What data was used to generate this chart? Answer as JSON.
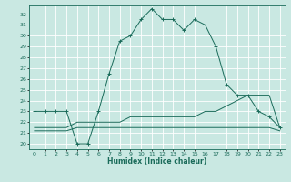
{
  "xlabel": "Humidex (Indice chaleur)",
  "ylabel": "",
  "bg_color": "#c9e8e2",
  "grid_color": "#b0d8d0",
  "line_color": "#1a6b5a",
  "xlim": [
    -0.5,
    23.5
  ],
  "ylim": [
    19.5,
    32.8
  ],
  "xticks": [
    0,
    1,
    2,
    3,
    4,
    5,
    6,
    7,
    8,
    9,
    10,
    11,
    12,
    13,
    14,
    15,
    16,
    17,
    18,
    19,
    20,
    21,
    22,
    23
  ],
  "yticks": [
    20,
    21,
    22,
    23,
    24,
    25,
    26,
    27,
    28,
    29,
    30,
    31,
    32
  ],
  "main_line": {
    "x": [
      0,
      1,
      2,
      3,
      4,
      5,
      6,
      7,
      8,
      9,
      10,
      11,
      12,
      13,
      14,
      15,
      16,
      17,
      18,
      19,
      20,
      21,
      22,
      23
    ],
    "y": [
      23,
      23,
      23,
      23,
      20,
      20,
      23,
      26.5,
      29.5,
      30,
      31.5,
      32.5,
      31.5,
      31.5,
      30.5,
      31.5,
      31,
      29,
      25.5,
      24.5,
      24.5,
      23,
      22.5,
      21.5
    ]
  },
  "line2": {
    "x": [
      0,
      1,
      2,
      3,
      4,
      5,
      6,
      7,
      8,
      9,
      10,
      11,
      12,
      13,
      14,
      15,
      16,
      17,
      18,
      19,
      20,
      21,
      22,
      23
    ],
    "y": [
      21.5,
      21.5,
      21.5,
      21.5,
      22,
      22,
      22,
      22,
      22,
      22.5,
      22.5,
      22.5,
      22.5,
      22.5,
      22.5,
      22.5,
      23,
      23,
      23.5,
      24,
      24.5,
      24.5,
      24.5,
      21.5
    ]
  },
  "line3": {
    "x": [
      0,
      1,
      2,
      3,
      4,
      5,
      6,
      7,
      8,
      9,
      10,
      11,
      12,
      13,
      14,
      15,
      16,
      17,
      18,
      19,
      20,
      21,
      22,
      23
    ],
    "y": [
      21.2,
      21.2,
      21.2,
      21.2,
      21.5,
      21.5,
      21.5,
      21.5,
      21.5,
      21.5,
      21.5,
      21.5,
      21.5,
      21.5,
      21.5,
      21.5,
      21.5,
      21.5,
      21.5,
      21.5,
      21.5,
      21.5,
      21.5,
      21.2
    ]
  }
}
